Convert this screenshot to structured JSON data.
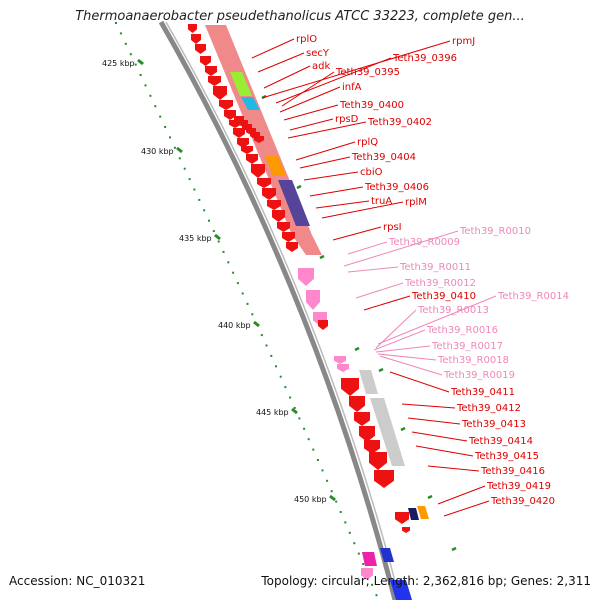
{
  "title": "Thermoanaerobacter pseudethanolicus ATCC 33223, complete gen...",
  "footer": {
    "accession": "Accession: NC_010321",
    "topology": "Topology: circular; Length: 2,362,816 bp; Genes: 2,311"
  },
  "ticks": [
    "425 kbp",
    "430 kbp",
    "435 kbp",
    "440 kbp",
    "445 kbp",
    "450 kbp"
  ],
  "gene_labels": [
    {
      "text": "rplO",
      "color": "#dd0000"
    },
    {
      "text": "rpmJ",
      "color": "#dd0000"
    },
    {
      "text": "secY",
      "color": "#dd0000"
    },
    {
      "text": "Teth39_0396",
      "color": "#dd0000"
    },
    {
      "text": "adk",
      "color": "#dd0000"
    },
    {
      "text": "Teth39_0395",
      "color": "#dd0000"
    },
    {
      "text": "infA",
      "color": "#dd0000"
    },
    {
      "text": "Teth39_0400",
      "color": "#dd0000"
    },
    {
      "text": "rpsD",
      "color": "#dd0000"
    },
    {
      "text": "Teth39_0402",
      "color": "#dd0000"
    },
    {
      "text": "rplQ",
      "color": "#dd0000"
    },
    {
      "text": "Teth39_0404",
      "color": "#dd0000"
    },
    {
      "text": "cbiO",
      "color": "#dd0000"
    },
    {
      "text": "Teth39_0406",
      "color": "#dd0000"
    },
    {
      "text": "truA",
      "color": "#dd0000"
    },
    {
      "text": "rplM",
      "color": "#dd0000"
    },
    {
      "text": "rpsI",
      "color": "#dd0000"
    },
    {
      "text": "Teth39_R0010",
      "color": "#ee88bb"
    },
    {
      "text": "Teth39_R0009",
      "color": "#ee88bb"
    },
    {
      "text": "Teth39_R0011",
      "color": "#ee88bb"
    },
    {
      "text": "Teth39_R0012",
      "color": "#ee88bb"
    },
    {
      "text": "Teth39_0410",
      "color": "#dd0000"
    },
    {
      "text": "Teth39_R0014",
      "color": "#ee88bb"
    },
    {
      "text": "Teth39_R0013",
      "color": "#ee88bb"
    },
    {
      "text": "Teth39_R0016",
      "color": "#ee88bb"
    },
    {
      "text": "Teth39_R0017",
      "color": "#ee88bb"
    },
    {
      "text": "Teth39_R0018",
      "color": "#ee88bb"
    },
    {
      "text": "Teth39_R0019",
      "color": "#ee88bb"
    },
    {
      "text": "Teth39_0411",
      "color": "#dd0000"
    },
    {
      "text": "Teth39_0412",
      "color": "#dd0000"
    },
    {
      "text": "Teth39_0413",
      "color": "#dd0000"
    },
    {
      "text": "Teth39_0414",
      "color": "#dd0000"
    },
    {
      "text": "Teth39_0415",
      "color": "#dd0000"
    },
    {
      "text": "Teth39_0416",
      "color": "#dd0000"
    },
    {
      "text": "Teth39_0419",
      "color": "#dd0000"
    },
    {
      "text": "Teth39_0420",
      "color": "#dd0000"
    }
  ],
  "colors": {
    "cds": "#ee1111",
    "rna": "#ff88cc",
    "backbone": "#888888",
    "tick": "#2a8a2a",
    "pale_red": "#f08080",
    "green": "#99ee33",
    "blue": "#22b8e6",
    "orange": "#ff9900",
    "purple": "#554499",
    "gray": "#cccccc"
  }
}
